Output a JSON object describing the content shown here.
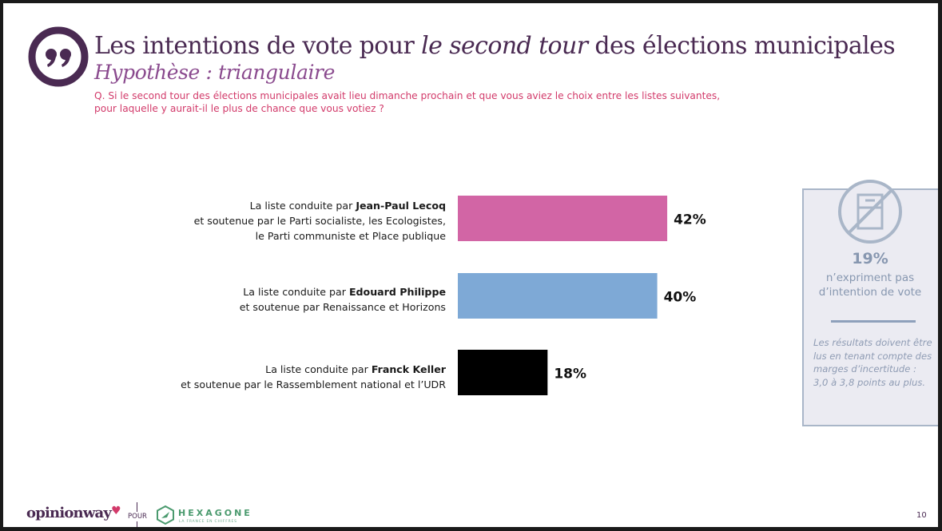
{
  "header": {
    "title_part1": "Les intentions de vote pour ",
    "title_italic": "le second tour",
    "title_part2": " des élections municipales",
    "subtitle": "Hypothèse : triangulaire",
    "question_line1": "Q. Si le second tour des élections municipales avait lieu dimanche prochain et que vous aviez le choix entre les listes suivantes,",
    "question_line2": "pour laquelle y aurait-il le plus de chance que vous votiez ?"
  },
  "icons": {
    "quote": "quote-marks-icon",
    "no_vote": "no-ballot-icon",
    "hexagone": "hexagone-logo-icon"
  },
  "lists": [
    {
      "prefix": "La liste conduite par ",
      "leader": "Jean-Paul Lecoq",
      "support_lines": [
        "et soutenue par le Parti socialiste, les Ecologistes,",
        "le Parti communiste et Place publique"
      ]
    },
    {
      "prefix": "La liste conduite par ",
      "leader": "Edouard Philippe",
      "support_lines": [
        "et soutenue par Renaissance et Horizons"
      ]
    },
    {
      "prefix": "La liste conduite par ",
      "leader": "Franck Keller",
      "support_lines": [
        "et soutenue par le Rassemblement national et l’UDR"
      ]
    }
  ],
  "chart_data": {
    "type": "bar",
    "orientation": "horizontal",
    "title": "Les intentions de vote pour le second tour des élections municipales",
    "subtitle": "Hypothèse : triangulaire",
    "categories": [
      "Jean-Paul Lecoq",
      "Edouard Philippe",
      "Franck Keller"
    ],
    "values": [
      42,
      40,
      18
    ],
    "value_labels": [
      "42%",
      "40%",
      "18%"
    ],
    "colors": [
      "#d265a5",
      "#7ea9d6",
      "#000000"
    ],
    "unit": "%",
    "xlabel": "",
    "ylabel": "",
    "xlim": [
      0,
      100
    ],
    "grid": false,
    "legend": "none"
  },
  "sidebox": {
    "pct": "19%",
    "text_line1": "n’expriment pas",
    "text_line2": "d’intention de vote",
    "note": "Les résultats doivent être lus en tenant compte des marges d’incertitude : 3,0 à 3,8 points au plus."
  },
  "footer": {
    "brand": "opinionway",
    "pour": "POUR",
    "partner": "HEXAGONE",
    "partner_tagline": "LA FRANCE EN CHIFFRES",
    "page_number": "10"
  },
  "colors": {
    "title": "#4a2a52",
    "subtitle": "#8a4a8e",
    "question": "#d23a6a",
    "sidebox_text": "#8797b0",
    "sidebox_bg": "#ebebf2",
    "partner": "#4a9a6e"
  }
}
